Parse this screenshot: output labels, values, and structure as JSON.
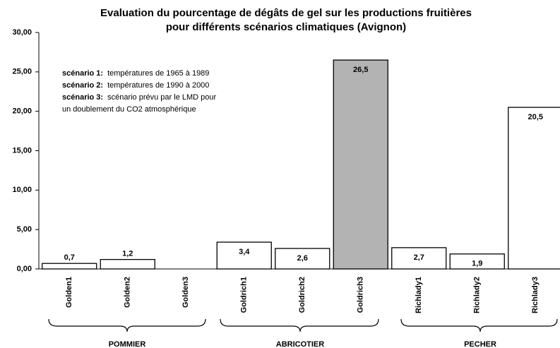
{
  "chart_data": {
    "type": "bar",
    "title": [
      "Evaluation du pourcentage de dégâts de gel sur les productions fruitières",
      "pour différents scénarios climatiques (Avignon)"
    ],
    "categories": [
      "Golden1",
      "Golden2",
      "Golden3",
      "Goldrich1",
      "Goldrich2",
      "Goldrich3",
      "Richlady1",
      "Richlady2",
      "Richlady3"
    ],
    "values": [
      0.7,
      1.2,
      null,
      3.4,
      2.6,
      26.5,
      2.7,
      1.9,
      20.5
    ],
    "value_labels": [
      "0,7",
      "1,2",
      null,
      "3,4",
      "2,6",
      "26,5",
      "2,7",
      "1,9",
      "20,5"
    ],
    "colors": [
      "#ffffff",
      "#ffffff",
      "#ffffff",
      "#ffffff",
      "#ffffff",
      "#b3b3b3",
      "#ffffff",
      "#ffffff",
      "#ffffff"
    ],
    "ylim": [
      0,
      30
    ],
    "yticks": [
      {
        "value": 0,
        "label": "0,00"
      },
      {
        "value": 5,
        "label": "5,00"
      },
      {
        "value": 10,
        "label": "10,00"
      },
      {
        "value": 15,
        "label": "15,00"
      },
      {
        "value": 20,
        "label": "20,00"
      },
      {
        "value": 25,
        "label": "25,00"
      },
      {
        "value": 30,
        "label": "30,00"
      }
    ],
    "groups": [
      "POMMIER",
      "ABRICOTIER",
      "PECHER"
    ],
    "annotations": [
      {
        "label": "scénario 1:",
        "text": "températures de 1965 à 1989"
      },
      {
        "label": "scénario 2:",
        "text": "températures de 1990 à 2000"
      },
      {
        "label": "scénario 3:",
        "text": "scénario prévu par le LMD pour"
      },
      {
        "text": "un doublement du CO2 atmosphérique"
      }
    ]
  }
}
